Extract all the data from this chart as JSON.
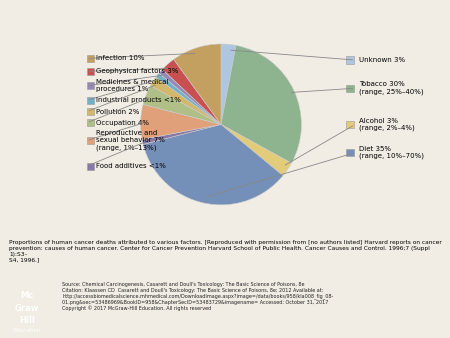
{
  "slices": [
    {
      "label": "Unknown 3%",
      "value": 3,
      "color": "#aec6df"
    },
    {
      "label": "Tobacco 30%\n(range, 25%–40%)",
      "value": 30,
      "color": "#8db48e"
    },
    {
      "label": "Alcohol 3%\n(range, 2%–4%)",
      "value": 3,
      "color": "#e2cc7a"
    },
    {
      "label": "Diet 35%\n(range, 10%–70%)",
      "value": 35,
      "color": "#7490b8"
    },
    {
      "label": "Food additives <1%",
      "value": 1,
      "color": "#8878a8"
    },
    {
      "label": "Reproductive and\nsexual behavior 7%\n(range, 1%–13%)",
      "value": 7,
      "color": "#e0a07a"
    },
    {
      "label": "Occupation 4%",
      "value": 4,
      "color": "#b0bf88"
    },
    {
      "label": "Pollution 2%",
      "value": 2,
      "color": "#d4b86a"
    },
    {
      "label": "Industrial products <1%",
      "value": 1,
      "color": "#70b0c8"
    },
    {
      "label": "Medicines & medical\nprocedures 1%",
      "value": 1,
      "color": "#9888b8"
    },
    {
      "label": "Geophysical factors 3%",
      "value": 3,
      "color": "#c85050"
    },
    {
      "label": "Infection 10%",
      "value": 10,
      "color": "#c4a060"
    }
  ],
  "caption": "Proportions of human cancer deaths attributed to various factors. [Reproduced with permission from [no authors listed] Harvard reports on cancer\nprevention: causes of human cancer. Center for Cancer Prevention Harvard School of Public Health. Cancer Causes and Control. 1996;7 (Suppl 1):S3–\nS4, 1996.]",
  "source_line1": "Source: Chemical Carcinogenesis, Casarett and Doull's Toxicology: The Basic Science of Poisons, 8e",
  "source_line2": "Citation: Klaassen CD  Casarett and Doull's Toxicology: The Basic Science of Poisons, 8e; 2012 Available at:",
  "source_line3": "http://accessbiomedicalscience.mhmedical.com/DownloadImage.aspx?image=/data/books/958/kla008_fig_08-",
  "source_line4": "01.png&sec=53486969&BookID=958&ChapterSecID=53483729&imagename= Accessed: October 31, 2017",
  "source_line5": "Copyright © 2017 McGraw-Hill Education. All rights reserved",
  "background_color": "#f2ede4",
  "figsize": [
    4.5,
    3.38
  ],
  "dpi": 100,
  "right_labels": [
    {
      "idx": 0,
      "text": "Unknown 3%"
    },
    {
      "idx": 1,
      "text": "Tobacco 30%\n(range, 25%–40%)"
    },
    {
      "idx": 2,
      "text": "Alcohol 3%\n(range, 2%–4%)"
    },
    {
      "idx": 3,
      "text": "Diet 35%\n(range, 10%–70%)"
    }
  ],
  "left_labels": [
    {
      "idx": 11,
      "text": "Infection 10%"
    },
    {
      "idx": 10,
      "text": "Geophysical factors 3%"
    },
    {
      "idx": 9,
      "text": "Medicines & medical\nprocedures 1%"
    },
    {
      "idx": 8,
      "text": "Industrial products <1%"
    },
    {
      "idx": 7,
      "text": "Pollution 2%"
    },
    {
      "idx": 6,
      "text": "Occupation 4%"
    },
    {
      "idx": 5,
      "text": "Reproductive and\nsexual behavior 7%\n(range, 1%–13%)"
    },
    {
      "idx": 4,
      "text": "Food additives <1%"
    }
  ]
}
